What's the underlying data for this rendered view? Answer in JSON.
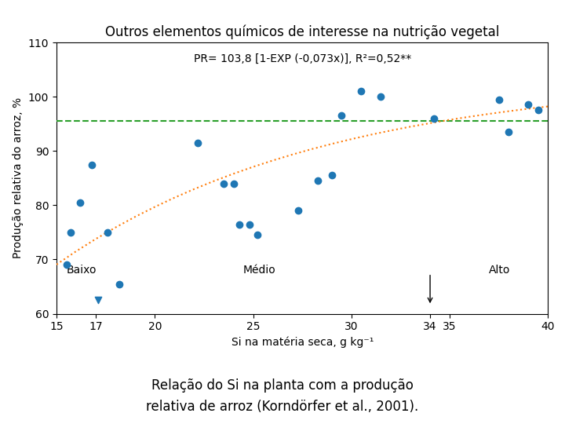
{
  "chart_data": {
    "type": "scatter",
    "title": "Outros elementos químicos de interesse na nutrição vegetal",
    "caption": [
      "Relação do Si na planta com a produção",
      "relativa de arroz (Korndörfer et al., 2001)."
    ],
    "xlabel": "Si na matéria seca, g kg⁻¹",
    "ylabel": "Produção relativa do arroz, %",
    "xlim": [
      15,
      40
    ],
    "ylim": [
      60,
      110
    ],
    "xticks": [
      15,
      17,
      20,
      25,
      30,
      34,
      35,
      40
    ],
    "yticks": [
      60,
      70,
      80,
      90,
      100,
      110
    ],
    "grid": false,
    "series": [
      {
        "type": "scatter",
        "marker": "circle",
        "x": [
          15.5,
          15.7,
          16.2,
          16.8,
          17.6,
          18.2,
          22.2,
          23.5,
          24.0,
          24.3,
          24.8,
          25.2,
          27.3,
          28.3,
          29.0,
          29.5,
          30.5,
          31.5,
          34.2,
          37.5,
          38.0,
          39.0,
          39.5
        ],
        "values": [
          69.0,
          75.0,
          80.5,
          87.5,
          75.0,
          65.5,
          91.5,
          84.0,
          84.0,
          76.5,
          76.5,
          74.5,
          79.0,
          84.5,
          85.5,
          96.5,
          101.0,
          100.0,
          96.0,
          99.5,
          93.5,
          98.5,
          97.5
        ]
      },
      {
        "type": "scatter",
        "marker": "triangle_down",
        "x": [
          17.1
        ],
        "values": [
          62.5
        ]
      },
      {
        "type": "line",
        "line_style": "dotted",
        "x": [
          15,
          16,
          17,
          18,
          19,
          20,
          21,
          22,
          23,
          24,
          25,
          26,
          27,
          28,
          29,
          30,
          31,
          32,
          33,
          34,
          35,
          36,
          37,
          38,
          39,
          40
        ],
        "values": [
          69.07,
          71.52,
          73.79,
          75.9,
          77.87,
          79.69,
          81.39,
          82.97,
          84.44,
          85.8,
          87.07,
          88.24,
          89.34,
          90.36,
          91.3,
          92.18,
          93.0,
          93.76,
          94.47,
          95.12,
          95.74,
          96.3,
          96.83,
          97.32,
          97.78,
          98.2
        ]
      }
    ],
    "reference_lines": [
      {
        "y": 95.5,
        "line_style": "dashed"
      }
    ],
    "arrows": [
      {
        "x": 34.0,
        "y_start": 67.5,
        "y_end": 61.5
      }
    ],
    "annotations": [
      {
        "text": "Baixo",
        "x": 15.5,
        "y": 68.0
      },
      {
        "text": "Médio",
        "x": 24.5,
        "y": 68.0
      },
      {
        "text": "Alto",
        "x": 37.0,
        "y": 68.0
      }
    ],
    "equation": "PR= 103,8 [1-EXP (-0,073x)], R²=0,52**"
  }
}
